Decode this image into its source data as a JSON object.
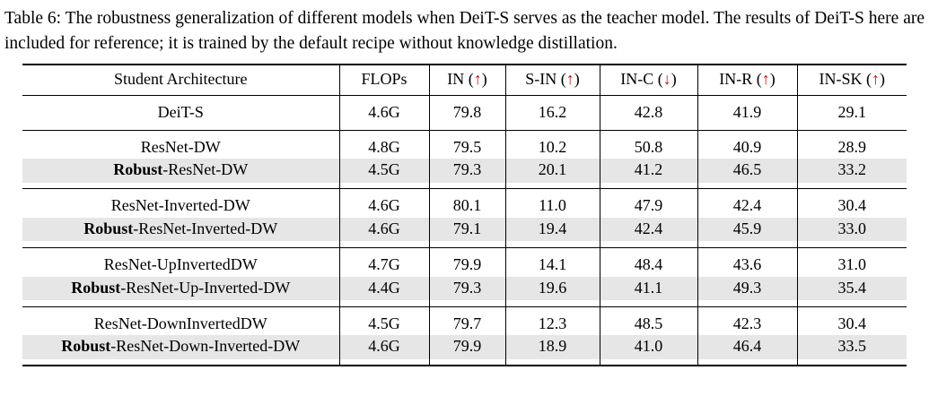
{
  "caption": {
    "tag": "Table 6:",
    "text": "The robustness generalization of different models when DeiT-S serves as the teacher model. The results of DeiT-S here are included for reference; it is trained by the default recipe without knowledge distillation."
  },
  "accent_colors": {
    "arrow_red": "#d40000",
    "shaded_row": "#e6e6e6"
  },
  "table": {
    "headers": [
      {
        "pre": "Student Architecture",
        "arrow": "",
        "post": ""
      },
      {
        "pre": "FLOPs",
        "arrow": "",
        "post": ""
      },
      {
        "pre": "IN (",
        "arrow": "↑",
        "post": ")"
      },
      {
        "pre": "S-IN (",
        "arrow": "↑",
        "post": ")"
      },
      {
        "pre": "IN-C (",
        "arrow": "↓",
        "post": ")"
      },
      {
        "pre": "IN-R (",
        "arrow": "↑",
        "post": ")"
      },
      {
        "pre": "IN-SK (",
        "arrow": "↑",
        "post": ")"
      }
    ],
    "rows": [
      {
        "bold": "",
        "name": "DeiT-S",
        "shaded": false,
        "kind": "solo",
        "values": [
          "4.6G",
          "79.8",
          "16.2",
          "42.8",
          "41.9",
          "29.1"
        ]
      },
      {
        "bold": "",
        "name": "ResNet-DW",
        "shaded": false,
        "kind": "first",
        "values": [
          "4.8G",
          "79.5",
          "10.2",
          "50.8",
          "40.9",
          "28.9"
        ]
      },
      {
        "bold": "Robust",
        "name": "-ResNet-DW",
        "shaded": true,
        "kind": "shaded",
        "spacer_after": true,
        "values": [
          "4.5G",
          "79.3",
          "20.1",
          "41.2",
          "46.5",
          "33.2"
        ]
      },
      {
        "bold": "",
        "name": "ResNet-Inverted-DW",
        "shaded": false,
        "kind": "first",
        "values": [
          "4.6G",
          "80.1",
          "11.0",
          "47.9",
          "42.4",
          "30.4"
        ]
      },
      {
        "bold": "Robust",
        "name": "-ResNet-Inverted-DW",
        "shaded": true,
        "kind": "shaded",
        "spacer_after": true,
        "values": [
          "4.6G",
          "79.1",
          "19.4",
          "42.4",
          "45.9",
          "33.0"
        ]
      },
      {
        "bold": "",
        "name": "ResNet-UpInvertedDW",
        "shaded": false,
        "kind": "first",
        "values": [
          "4.7G",
          "79.9",
          "14.1",
          "48.4",
          "43.6",
          "31.0"
        ]
      },
      {
        "bold": "Robust",
        "name": "-ResNet-Up-Inverted-DW",
        "shaded": true,
        "kind": "shaded",
        "spacer_after": true,
        "values": [
          "4.4G",
          "79.3",
          "19.6",
          "41.1",
          "49.3",
          "35.4"
        ]
      },
      {
        "bold": "",
        "name": "ResNet-DownInvertedDW",
        "shaded": false,
        "kind": "first",
        "values": [
          "4.5G",
          "79.7",
          "12.3",
          "48.5",
          "42.3",
          "30.4"
        ]
      },
      {
        "bold": "Robust",
        "name": "-ResNet-Down-Inverted-DW",
        "shaded": true,
        "kind": "shaded",
        "spacer_after": true,
        "last": true,
        "values": [
          "4.6G",
          "79.9",
          "18.9",
          "41.0",
          "46.4",
          "33.5"
        ]
      }
    ]
  }
}
